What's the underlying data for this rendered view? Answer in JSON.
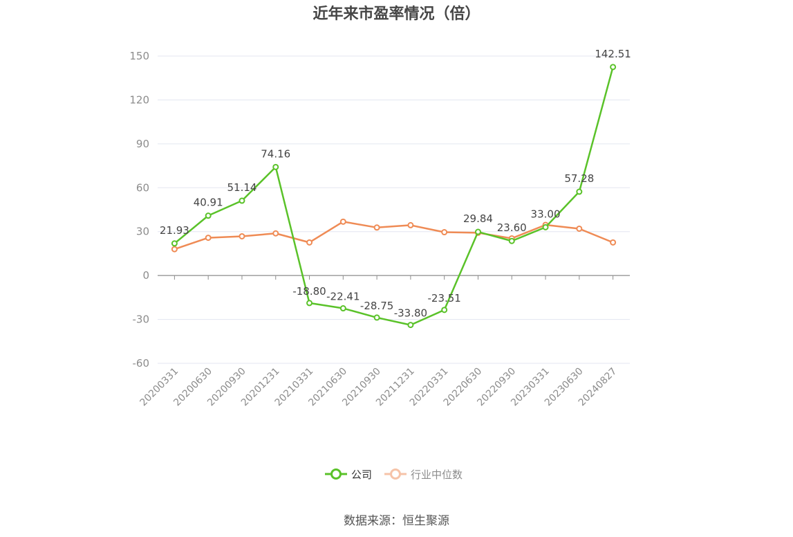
{
  "chart_data": {
    "type": "line",
    "title": "近年来市盈率情况（倍）",
    "categories": [
      "20200331",
      "20200630",
      "20200930",
      "20201231",
      "20210331",
      "20210630",
      "20210930",
      "20211231",
      "20220331",
      "20220630",
      "20220930",
      "20230331",
      "20230630",
      "20240827"
    ],
    "series": [
      {
        "name": "公司",
        "color": "#5ac229",
        "values": [
          21.93,
          40.91,
          51.14,
          74.16,
          -18.8,
          -22.41,
          -28.75,
          -33.8,
          -23.51,
          29.84,
          23.6,
          33.0,
          57.28,
          142.51
        ],
        "labels": [
          "21.93",
          "40.91",
          "51.14",
          "74.16",
          "-18.80",
          "-22.41",
          "-28.75",
          "-33.80",
          "-23.51",
          "29.84",
          "23.60",
          "33.00",
          "57.28",
          "142.51"
        ]
      },
      {
        "name": "行业中位数",
        "color": "#ef8b55",
        "values": [
          18.0,
          25.8,
          26.8,
          28.8,
          22.6,
          36.8,
          32.8,
          34.4,
          29.6,
          29.2,
          25.4,
          34.6,
          32.0,
          22.6
        ]
      }
    ],
    "yticks": [
      "150",
      "120",
      "90",
      "60",
      "30",
      "0",
      "-30",
      "-60"
    ],
    "ylim": [
      -60,
      150
    ],
    "grid": true,
    "legend_position": "bottom"
  },
  "source_text": "数据来源：恒生聚源"
}
